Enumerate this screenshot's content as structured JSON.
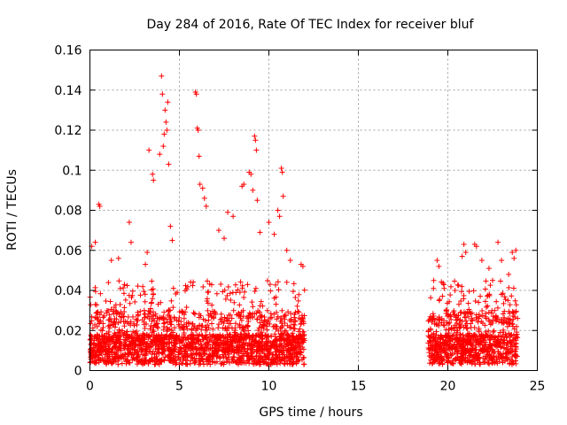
{
  "chart_data": {
    "type": "scatter",
    "title": "Day 284 of 2016, Rate Of TEC Index for receiver bluf",
    "xlabel": "GPS time / hours",
    "ylabel": "ROTI / TECUs",
    "xlim": [
      0,
      25
    ],
    "ylim": [
      0,
      0.16
    ],
    "x_ticks": [
      0,
      5,
      10,
      15,
      20,
      25
    ],
    "y_ticks": [
      0,
      0.02,
      0.04,
      0.06,
      0.08,
      0.1,
      0.12,
      0.14,
      0.16
    ],
    "y_tick_labels": [
      "0",
      "0.02",
      "0.04",
      "0.06",
      "0.08",
      "0.1",
      "0.12",
      "0.14",
      "0.16"
    ],
    "grid": true,
    "marker": "plus",
    "marker_color": "#ff0000",
    "series": [
      {
        "name": "ROTI",
        "data_segments": [
          {
            "x_start": 0.0,
            "x_end": 12.0
          },
          {
            "x_start": 18.9,
            "x_end": 23.9
          }
        ],
        "points": [
          [
            0.5,
            0.083
          ],
          [
            0.55,
            0.082
          ],
          [
            0.3,
            0.064
          ],
          [
            0.1,
            0.062
          ],
          [
            1.2,
            0.055
          ],
          [
            1.6,
            0.056
          ],
          [
            2.2,
            0.074
          ],
          [
            2.3,
            0.064
          ],
          [
            3.1,
            0.053
          ],
          [
            3.2,
            0.059
          ],
          [
            3.3,
            0.11
          ],
          [
            3.5,
            0.098
          ],
          [
            3.55,
            0.095
          ],
          [
            3.9,
            0.108
          ],
          [
            4.0,
            0.147
          ],
          [
            4.05,
            0.138
          ],
          [
            4.2,
            0.13
          ],
          [
            4.25,
            0.124
          ],
          [
            4.3,
            0.12
          ],
          [
            4.35,
            0.134
          ],
          [
            4.1,
            0.112
          ],
          [
            4.15,
            0.118
          ],
          [
            4.4,
            0.103
          ],
          [
            4.5,
            0.072
          ],
          [
            4.6,
            0.065
          ],
          [
            5.9,
            0.139
          ],
          [
            5.95,
            0.138
          ],
          [
            6.0,
            0.121
          ],
          [
            6.05,
            0.12
          ],
          [
            6.1,
            0.107
          ],
          [
            6.15,
            0.093
          ],
          [
            6.3,
            0.091
          ],
          [
            6.5,
            0.082
          ],
          [
            6.4,
            0.086
          ],
          [
            7.2,
            0.07
          ],
          [
            7.5,
            0.066
          ],
          [
            7.7,
            0.079
          ],
          [
            8.0,
            0.077
          ],
          [
            8.5,
            0.092
          ],
          [
            8.6,
            0.093
          ],
          [
            8.9,
            0.099
          ],
          [
            9.0,
            0.098
          ],
          [
            9.2,
            0.117
          ],
          [
            9.25,
            0.115
          ],
          [
            9.3,
            0.11
          ],
          [
            9.1,
            0.09
          ],
          [
            9.35,
            0.085
          ],
          [
            9.5,
            0.069
          ],
          [
            10.0,
            0.074
          ],
          [
            10.3,
            0.068
          ],
          [
            10.5,
            0.08
          ],
          [
            10.7,
            0.101
          ],
          [
            10.75,
            0.099
          ],
          [
            10.8,
            0.087
          ],
          [
            10.6,
            0.077
          ],
          [
            11.0,
            0.06
          ],
          [
            11.2,
            0.055
          ],
          [
            11.8,
            0.053
          ],
          [
            11.9,
            0.052
          ],
          [
            19.2,
            0.041
          ],
          [
            19.4,
            0.055
          ],
          [
            19.5,
            0.052
          ],
          [
            19.9,
            0.03
          ],
          [
            20.4,
            0.04
          ],
          [
            20.8,
            0.057
          ],
          [
            20.9,
            0.063
          ],
          [
            21.0,
            0.059
          ],
          [
            21.5,
            0.063
          ],
          [
            21.6,
            0.062
          ],
          [
            21.9,
            0.055
          ],
          [
            22.3,
            0.051
          ],
          [
            22.5,
            0.045
          ],
          [
            22.8,
            0.064
          ],
          [
            23.0,
            0.055
          ],
          [
            23.4,
            0.048
          ],
          [
            23.6,
            0.059
          ],
          [
            23.7,
            0.056
          ],
          [
            23.8,
            0.06
          ]
        ]
      }
    ]
  }
}
